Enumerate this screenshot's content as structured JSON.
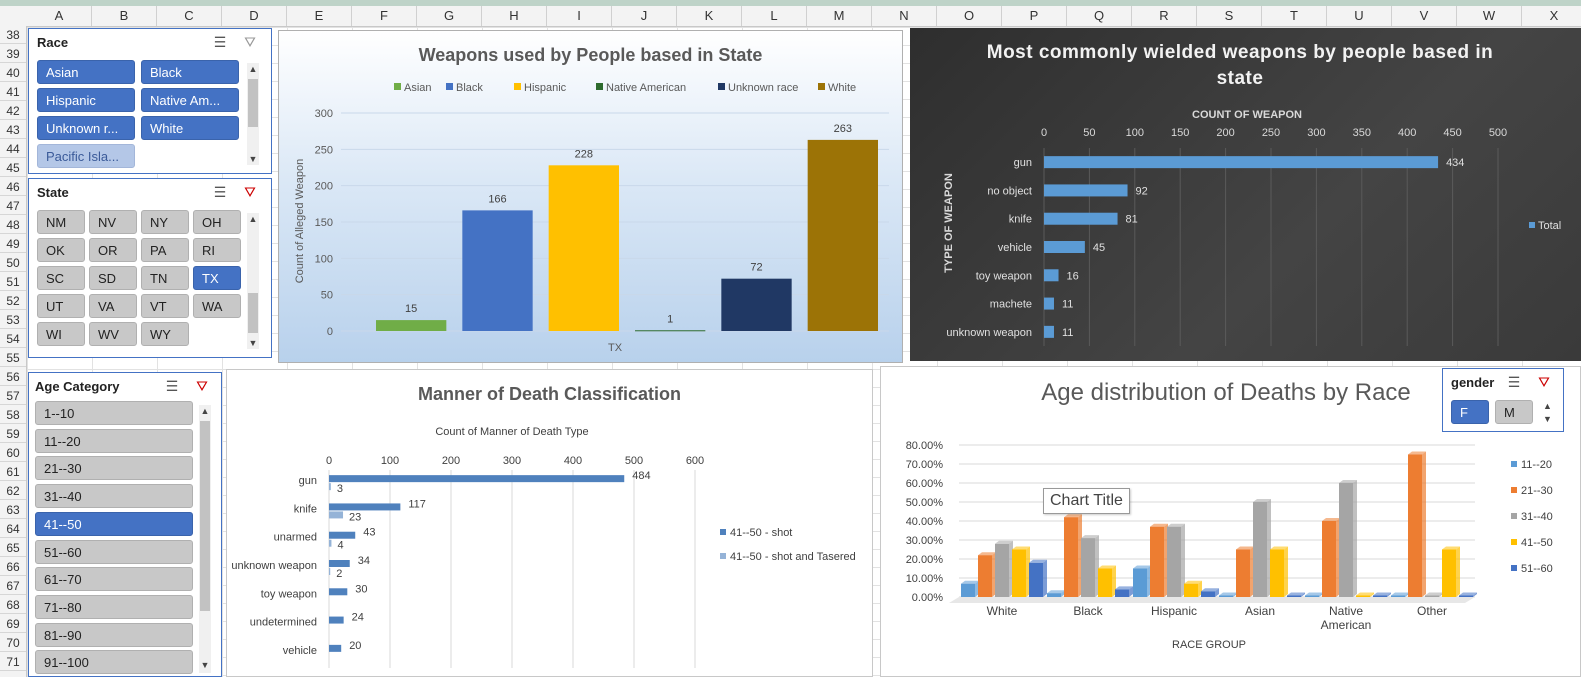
{
  "columns": [
    "A",
    "B",
    "C",
    "D",
    "E",
    "F",
    "G",
    "H",
    "I",
    "J",
    "K",
    "L",
    "M",
    "N",
    "O",
    "P",
    "Q",
    "R",
    "S",
    "T",
    "U",
    "V",
    "W",
    "X"
  ],
  "rows": [
    "38",
    "39",
    "40",
    "41",
    "42",
    "43",
    "44",
    "45",
    "46",
    "47",
    "48",
    "49",
    "50",
    "51",
    "52",
    "53",
    "54",
    "55",
    "56",
    "57",
    "58",
    "59",
    "60",
    "61",
    "62",
    "63",
    "64",
    "65",
    "66",
    "67",
    "68",
    "69",
    "70",
    "71"
  ],
  "race_slicer": {
    "title": "Race",
    "items": [
      {
        "label": "Asian",
        "state": "on"
      },
      {
        "label": "Black",
        "state": "on"
      },
      {
        "label": "Hispanic",
        "state": "on"
      },
      {
        "label": "Native Am...",
        "state": "on"
      },
      {
        "label": "Unknown r...",
        "state": "on"
      },
      {
        "label": "White",
        "state": "on"
      },
      {
        "label": "Pacific Isla...",
        "state": "faded"
      }
    ]
  },
  "state_slicer": {
    "title": "State",
    "items": [
      {
        "label": "NM",
        "state": "off"
      },
      {
        "label": "NV",
        "state": "off"
      },
      {
        "label": "NY",
        "state": "off"
      },
      {
        "label": "OH",
        "state": "off"
      },
      {
        "label": "OK",
        "state": "off"
      },
      {
        "label": "OR",
        "state": "off"
      },
      {
        "label": "PA",
        "state": "off"
      },
      {
        "label": "RI",
        "state": "off"
      },
      {
        "label": "SC",
        "state": "off"
      },
      {
        "label": "SD",
        "state": "off"
      },
      {
        "label": "TN",
        "state": "off"
      },
      {
        "label": "TX",
        "state": "on"
      },
      {
        "label": "UT",
        "state": "off"
      },
      {
        "label": "VA",
        "state": "off"
      },
      {
        "label": "VT",
        "state": "off"
      },
      {
        "label": "WA",
        "state": "off"
      },
      {
        "label": "WI",
        "state": "off"
      },
      {
        "label": "WV",
        "state": "off"
      },
      {
        "label": "WY",
        "state": "off"
      }
    ]
  },
  "age_slicer": {
    "title": "Age Category",
    "items": [
      {
        "label": "1--10",
        "state": "off"
      },
      {
        "label": "11--20",
        "state": "off"
      },
      {
        "label": "21--30",
        "state": "off"
      },
      {
        "label": "31--40",
        "state": "off"
      },
      {
        "label": "41--50",
        "state": "on"
      },
      {
        "label": "51--60",
        "state": "off"
      },
      {
        "label": "61--70",
        "state": "off"
      },
      {
        "label": "71--80",
        "state": "off"
      },
      {
        "label": "81--90",
        "state": "off"
      },
      {
        "label": "91--100",
        "state": "off"
      }
    ]
  },
  "gender_slicer": {
    "title": "gender",
    "items": [
      {
        "label": "F",
        "state": "on"
      },
      {
        "label": "M",
        "state": "off"
      }
    ]
  },
  "chart_data": [
    {
      "id": "weapons-by-race",
      "type": "bar",
      "title": "Weapons used by People based in State",
      "ylabel": "Count of Alleged Weapon",
      "xlabel": "TX",
      "ylim": [
        0,
        300
      ],
      "yticks": [
        "0",
        "50",
        "100",
        "150",
        "200",
        "250",
        "300"
      ],
      "series": [
        {
          "name": "Asian",
          "value": 15,
          "color": "#70ad47"
        },
        {
          "name": "Black",
          "value": 166,
          "color": "#4472c4"
        },
        {
          "name": "Hispanic",
          "value": 228,
          "color": "#ffc000"
        },
        {
          "name": "Native American",
          "value": 1,
          "color": "#2e6b2e"
        },
        {
          "name": "Unknown race",
          "value": 72,
          "color": "#203864"
        },
        {
          "name": "White",
          "value": 263,
          "color": "#9c7306"
        }
      ],
      "legend": "top"
    },
    {
      "id": "common-weapons",
      "type": "bar",
      "orientation": "horizontal",
      "title": "Most commonly wielded weapons by people based in state",
      "xlabel": "COUNT OF WEAPON",
      "ylabel": "TYPE OF WEAPON",
      "xlim": [
        0,
        500
      ],
      "xticks": [
        "0",
        "50",
        "100",
        "150",
        "200",
        "250",
        "300",
        "350",
        "400",
        "450",
        "500"
      ],
      "categories": [
        "gun",
        "no object",
        "knife",
        "vehicle",
        "toy weapon",
        "machete",
        "unknown weapon"
      ],
      "series": [
        {
          "name": "Total",
          "values": [
            434,
            92,
            81,
            45,
            16,
            11,
            11
          ],
          "color": "#5b9bd5"
        }
      ],
      "legend": "right"
    },
    {
      "id": "manner-of-death",
      "type": "bar",
      "orientation": "horizontal",
      "title": "Manner of Death Classification",
      "xlabel": "Count of Manner of Death Type",
      "xlim": [
        0,
        600
      ],
      "xticks": [
        "0",
        "100",
        "200",
        "300",
        "400",
        "500",
        "600"
      ],
      "categories": [
        "gun",
        "knife",
        "unarmed",
        "unknown weapon",
        "toy weapon",
        "undetermined",
        "vehicle"
      ],
      "series": [
        {
          "name": "41--50 - shot",
          "values": [
            484,
            117,
            43,
            34,
            30,
            24,
            20
          ],
          "labels": [
            "484",
            "117",
            "43",
            "34",
            "30",
            "24",
            "20"
          ],
          "color": "#4f81bd"
        },
        {
          "name": "41--50 - shot and Tasered",
          "values": [
            3,
            23,
            4,
            2,
            null,
            null,
            null
          ],
          "labels": [
            "3",
            "23",
            "4",
            "2",
            "",
            "",
            ""
          ],
          "color": "#95b3d7"
        }
      ],
      "legend": "right"
    },
    {
      "id": "age-distribution",
      "type": "bar",
      "title": "Age distribution of Deaths by Race",
      "xlabel": "RACE GROUP",
      "ylim": [
        0,
        0.8
      ],
      "yticks": [
        "0.00%",
        "10.00%",
        "20.00%",
        "30.00%",
        "40.00%",
        "50.00%",
        "60.00%",
        "70.00%",
        "80.00%"
      ],
      "categories": [
        "White",
        "Black",
        "Hispanic",
        "Asian",
        "Native American",
        "Other"
      ],
      "series": [
        {
          "name": "11--20",
          "values": [
            0.07,
            0.02,
            0.15,
            0,
            0,
            0
          ],
          "color": "#5b9bd5"
        },
        {
          "name": "21--30",
          "values": [
            0.22,
            0.42,
            0.37,
            0.25,
            0.4,
            0.75
          ],
          "color": "#ed7d31"
        },
        {
          "name": "31--40",
          "values": [
            0.28,
            0.31,
            0.37,
            0.5,
            0.6,
            0
          ],
          "color": "#a5a5a5"
        },
        {
          "name": "41--50",
          "values": [
            0.25,
            0.15,
            0.07,
            0.25,
            0,
            0.25
          ],
          "color": "#ffc000"
        },
        {
          "name": "51--60",
          "values": [
            0.18,
            0.04,
            0.03,
            0,
            0,
            0
          ],
          "color": "#4472c4"
        }
      ],
      "tooltip": "Chart Title",
      "legend": "right"
    }
  ]
}
